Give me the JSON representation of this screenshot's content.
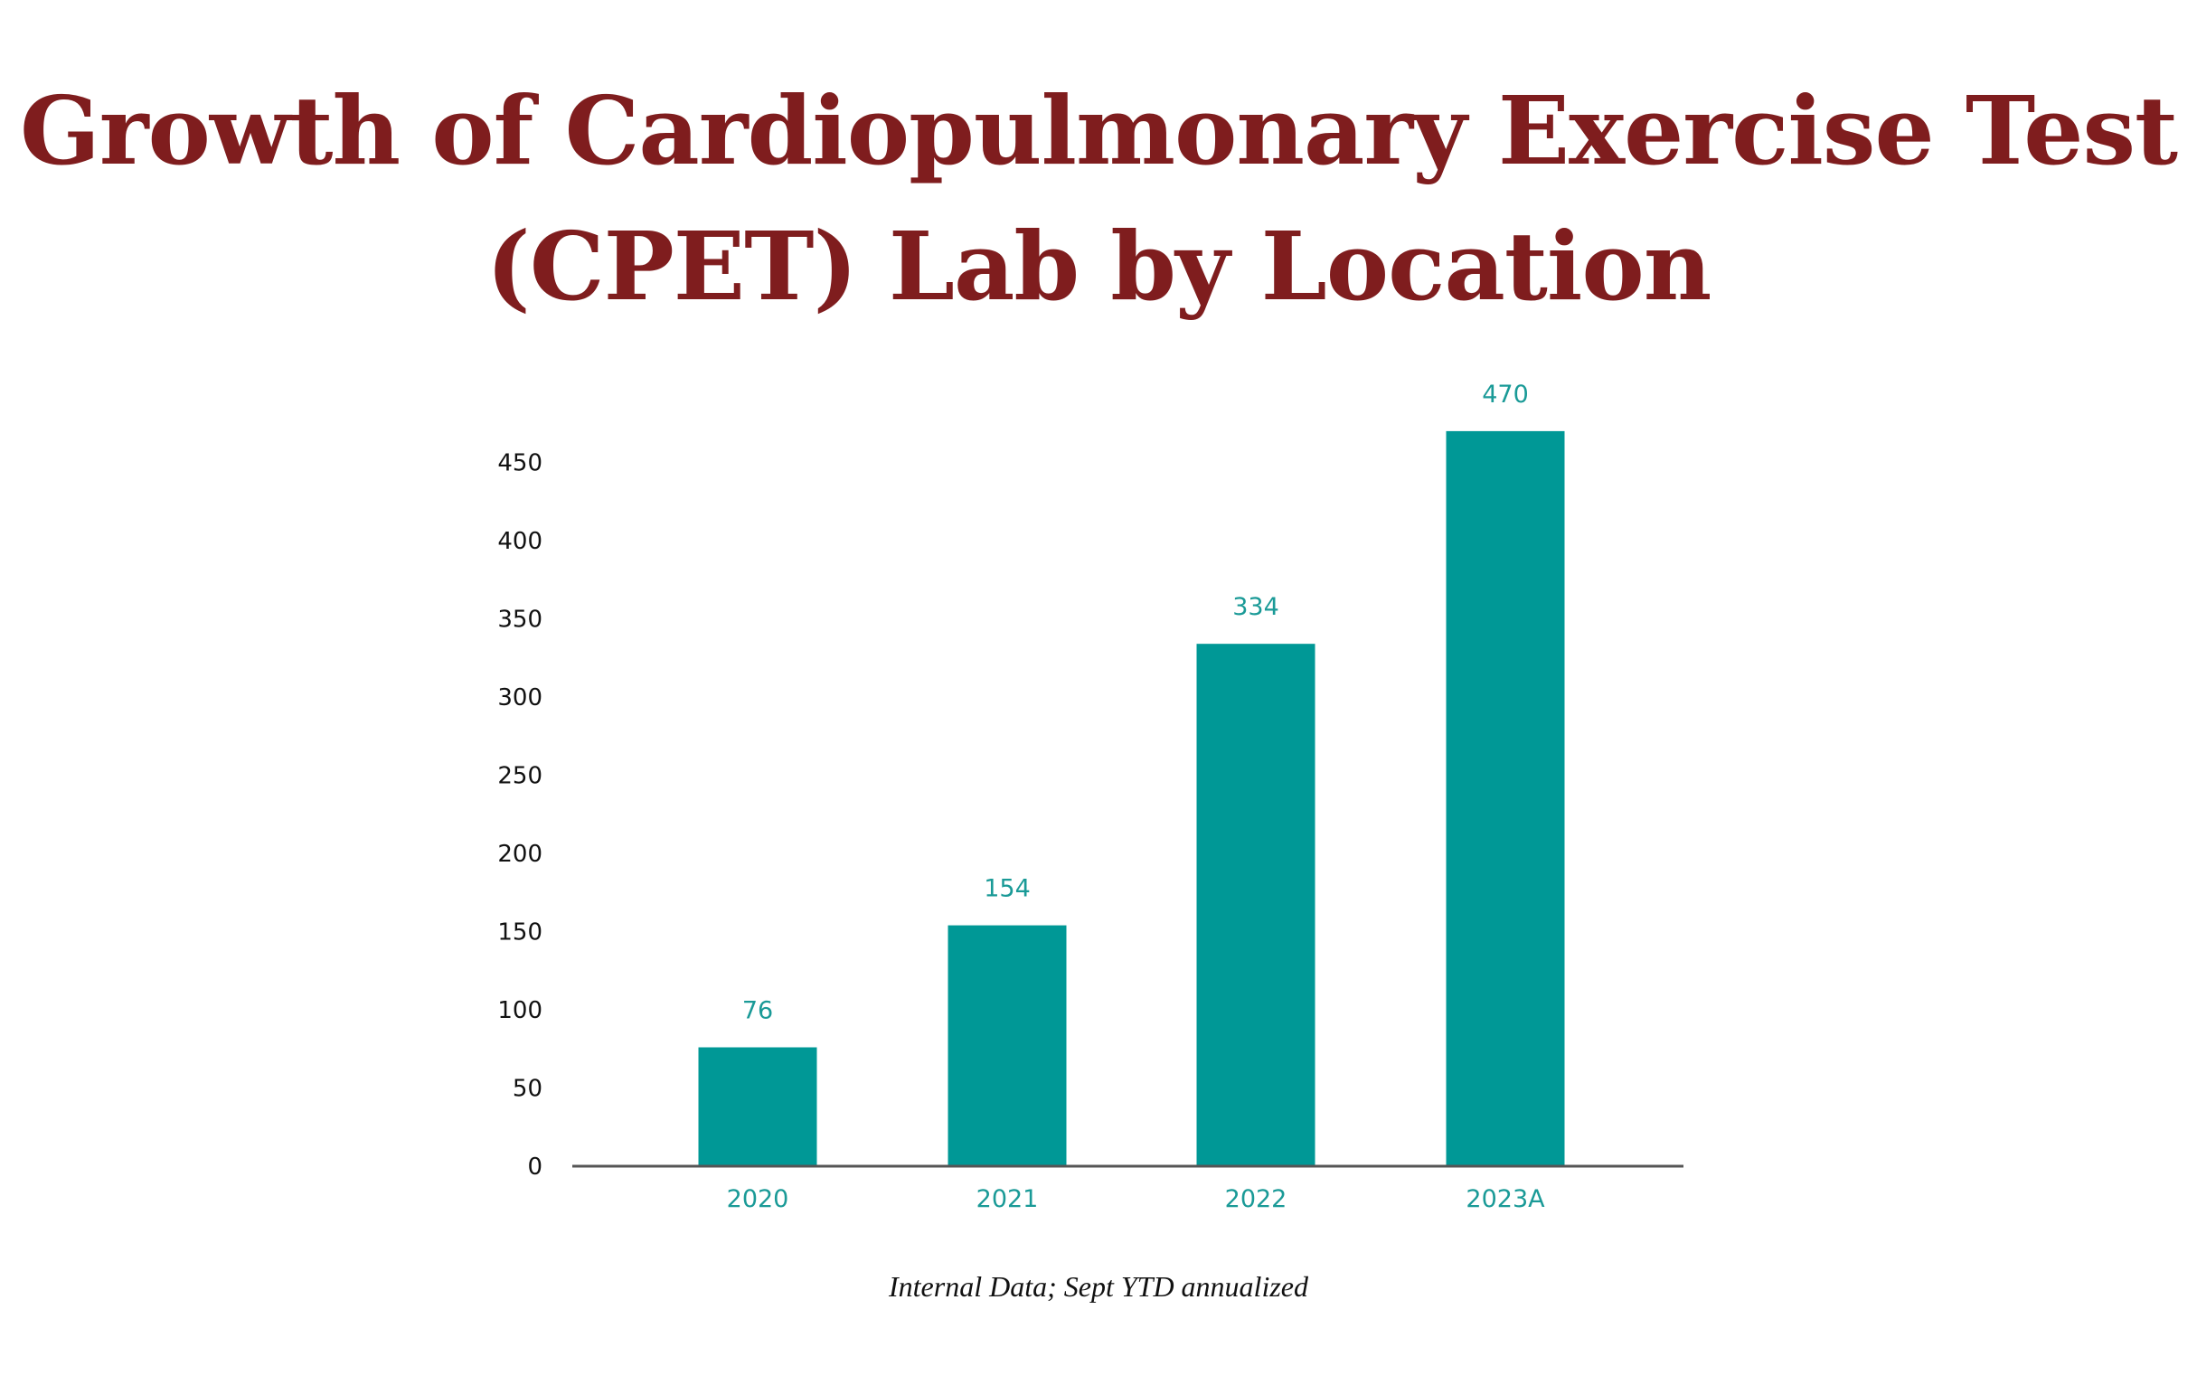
{
  "title_lines": [
    "Growth of Cardiopulmonary Exercise Test",
    "(CPET) Lab by Location"
  ],
  "source_note": "Internal Data; Sept YTD annualized",
  "colors": {
    "title": "#7f1d1e",
    "bar": "#009896",
    "category_label": "#1a9a97",
    "axis": "#555555"
  },
  "chart_data": {
    "type": "bar",
    "title": "Growth of Cardiopulmonary Exercise Test (CPET) Lab by Location",
    "categories": [
      "2020",
      "2021",
      "2022",
      "2023A"
    ],
    "values": [
      76,
      154,
      334,
      470
    ],
    "data_labels": [
      "76",
      "154",
      "334",
      "470"
    ],
    "yticks": [
      0,
      50,
      100,
      150,
      200,
      250,
      300,
      350,
      400,
      450
    ],
    "ylim": [
      0,
      470
    ],
    "xlabel": "",
    "ylabel": "",
    "grid": false,
    "legend": "none"
  }
}
